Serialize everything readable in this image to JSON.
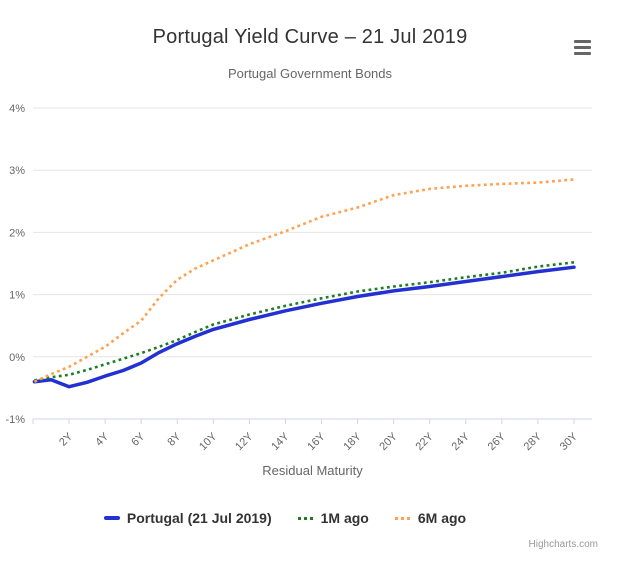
{
  "header": {
    "title": "Portugal Yield Curve – 21 Jul 2019",
    "subtitle": "Portugal Government Bonds"
  },
  "chart_data": {
    "type": "line",
    "title": "Portugal Yield Curve – 21 Jul 2019",
    "subtitle": "Portugal Government Bonds",
    "xlabel": "Residual Maturity",
    "ylabel": "",
    "xlim": [
      0,
      31
    ],
    "ylim": [
      -1,
      4
    ],
    "grid": "horizontal",
    "legend_position": "bottom",
    "x_ticks": {
      "years": [
        0,
        2,
        4,
        6,
        8,
        10,
        12,
        14,
        16,
        18,
        20,
        22,
        24,
        26,
        28,
        30
      ],
      "labels": [
        "",
        "2Y",
        "4Y",
        "6Y",
        "8Y",
        "10Y",
        "12Y",
        "14Y",
        "16Y",
        "18Y",
        "20Y",
        "22Y",
        "24Y",
        "26Y",
        "28Y",
        "30Y"
      ],
      "label_rotation_deg": -45
    },
    "y_ticks": {
      "values": [
        -1,
        0,
        1,
        2,
        3,
        4
      ],
      "labels": [
        "-1%",
        "0%",
        "1%",
        "2%",
        "3%",
        "4%"
      ]
    },
    "x": [
      0.08,
      1,
      2,
      3,
      4,
      5,
      6,
      7,
      8,
      9,
      10,
      12,
      14,
      16,
      18,
      20,
      22,
      24,
      26,
      28,
      30
    ],
    "series": [
      {
        "name": "Portugal (21 Jul 2019)",
        "color": "#2330d2",
        "dash": "solid",
        "width": 3.5,
        "values": [
          -0.4,
          -0.37,
          -0.48,
          -0.41,
          -0.31,
          -0.22,
          -0.1,
          0.07,
          0.21,
          0.33,
          0.44,
          0.6,
          0.74,
          0.86,
          0.97,
          1.06,
          1.13,
          1.21,
          1.29,
          1.37,
          1.44
        ]
      },
      {
        "name": "1M ago",
        "color": "#1e7d22",
        "dash": "dot",
        "width": 2.6,
        "values": [
          -0.38,
          -0.33,
          -0.29,
          -0.21,
          -0.12,
          -0.03,
          0.06,
          0.16,
          0.27,
          0.4,
          0.52,
          0.68,
          0.82,
          0.94,
          1.05,
          1.13,
          1.2,
          1.28,
          1.35,
          1.45,
          1.52
        ]
      },
      {
        "name": "6M ago",
        "color": "#ffa14e",
        "dash": "dot",
        "width": 2.6,
        "values": [
          -0.4,
          -0.28,
          -0.16,
          0.0,
          0.16,
          0.38,
          0.58,
          0.95,
          1.24,
          1.42,
          1.55,
          1.81,
          2.02,
          2.25,
          2.4,
          2.6,
          2.7,
          2.75,
          2.78,
          2.8,
          2.85
        ]
      }
    ],
    "style": {
      "grid_color": "#e6e6e6",
      "axis_color": "#ccd6eb",
      "tick_label_color": "#666666",
      "title_color": "#333333",
      "subtitle_color": "#666666"
    }
  },
  "credits": {
    "text": "Highcharts.com"
  }
}
